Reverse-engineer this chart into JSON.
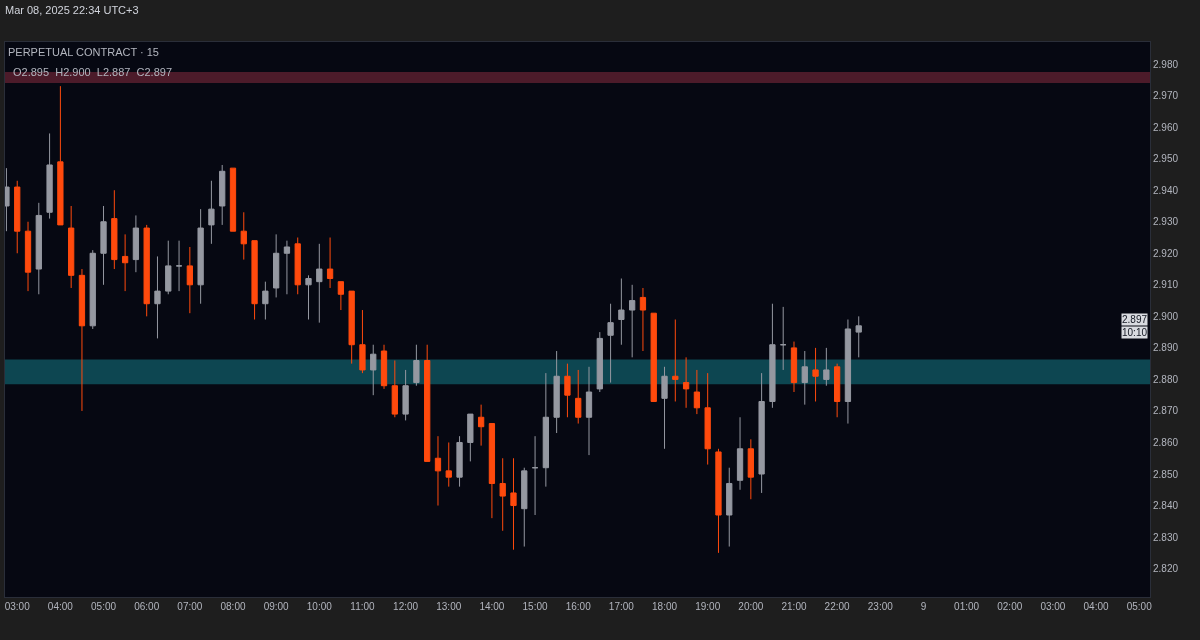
{
  "chart_data": {
    "type": "candlestick",
    "title": "PERPETUAL CONTRACT · 15",
    "subtitle": "O2.895  H2.900  L2.887  C2.897",
    "annotations": [
      "Mar 08, 2025 22:34 UTC+3",
      "2.897",
      "10:10"
    ],
    "x": [
      "2025-03-08T02:45",
      "2025-03-08T03:00",
      "2025-03-08T03:15",
      "2025-03-08T03:30",
      "2025-03-08T03:45",
      "2025-03-08T04:00",
      "2025-03-08T04:15",
      "2025-03-08T04:30",
      "2025-03-08T04:45",
      "2025-03-08T05:00",
      "2025-03-08T05:15",
      "2025-03-08T05:30",
      "2025-03-08T05:45",
      "2025-03-08T06:00",
      "2025-03-08T06:15",
      "2025-03-08T06:30",
      "2025-03-08T06:45",
      "2025-03-08T07:00",
      "2025-03-08T07:15",
      "2025-03-08T07:30",
      "2025-03-08T07:45",
      "2025-03-08T08:00",
      "2025-03-08T08:15",
      "2025-03-08T08:30",
      "2025-03-08T08:45",
      "2025-03-08T09:00",
      "2025-03-08T09:15",
      "2025-03-08T09:30",
      "2025-03-08T09:45",
      "2025-03-08T10:00",
      "2025-03-08T10:15",
      "2025-03-08T10:30",
      "2025-03-08T10:45",
      "2025-03-08T11:00",
      "2025-03-08T11:15",
      "2025-03-08T11:30",
      "2025-03-08T11:45",
      "2025-03-08T12:00",
      "2025-03-08T12:15",
      "2025-03-08T12:30",
      "2025-03-08T12:45",
      "2025-03-08T13:00",
      "2025-03-08T13:15",
      "2025-03-08T13:30",
      "2025-03-08T13:45",
      "2025-03-08T14:00",
      "2025-03-08T14:15",
      "2025-03-08T14:30",
      "2025-03-08T14:45",
      "2025-03-08T15:00",
      "2025-03-08T15:15",
      "2025-03-08T15:30",
      "2025-03-08T15:45",
      "2025-03-08T16:00",
      "2025-03-08T16:15",
      "2025-03-08T16:30",
      "2025-03-08T16:45",
      "2025-03-08T17:00",
      "2025-03-08T17:15",
      "2025-03-08T17:30",
      "2025-03-08T17:45",
      "2025-03-08T18:00",
      "2025-03-08T18:15",
      "2025-03-08T18:30",
      "2025-03-08T18:45",
      "2025-03-08T19:00",
      "2025-03-08T19:15",
      "2025-03-08T19:30",
      "2025-03-08T19:45",
      "2025-03-08T20:00",
      "2025-03-08T20:15",
      "2025-03-08T20:30",
      "2025-03-08T20:45",
      "2025-03-08T21:00",
      "2025-03-08T21:15",
      "2025-03-08T21:30",
      "2025-03-08T21:45",
      "2025-03-08T22:00",
      "2025-03-08T22:15",
      "2025-03-08T22:30"
    ],
    "ohlc": [
      [
        2.935,
        2.947,
        2.927,
        2.941
      ],
      [
        2.941,
        2.943,
        2.92,
        2.927
      ],
      [
        2.927,
        2.93,
        2.908,
        2.914
      ],
      [
        2.915,
        2.936,
        2.907,
        2.932
      ],
      [
        2.933,
        2.958,
        2.931,
        2.948
      ],
      [
        2.949,
        2.973,
        2.929,
        2.929
      ],
      [
        2.928,
        2.935,
        2.909,
        2.913
      ],
      [
        2.913,
        2.915,
        2.87,
        2.897
      ],
      [
        2.897,
        2.921,
        2.896,
        2.92
      ],
      [
        2.92,
        2.935,
        2.91,
        2.93
      ],
      [
        2.931,
        2.94,
        2.915,
        2.918
      ],
      [
        2.919,
        2.926,
        2.908,
        2.917
      ],
      [
        2.918,
        2.932,
        2.914,
        2.928
      ],
      [
        2.928,
        2.929,
        2.9,
        2.904
      ],
      [
        2.904,
        2.919,
        2.893,
        2.908
      ],
      [
        2.908,
        2.924,
        2.907,
        2.916
      ],
      [
        2.916,
        2.924,
        2.908,
        2.916
      ],
      [
        2.916,
        2.922,
        2.901,
        2.91
      ],
      [
        2.91,
        2.934,
        2.904,
        2.928
      ],
      [
        2.929,
        2.943,
        2.923,
        2.934
      ],
      [
        2.935,
        2.948,
        2.929,
        2.946
      ],
      [
        2.947,
        2.947,
        2.927,
        2.927
      ],
      [
        2.927,
        2.933,
        2.918,
        2.923
      ],
      [
        2.924,
        2.924,
        2.899,
        2.904
      ],
      [
        2.904,
        2.911,
        2.899,
        2.908
      ],
      [
        2.909,
        2.926,
        2.906,
        2.92
      ],
      [
        2.92,
        2.924,
        2.907,
        2.922
      ],
      [
        2.923,
        2.925,
        2.907,
        2.91
      ],
      [
        2.91,
        2.913,
        2.899,
        2.912
      ],
      [
        2.911,
        2.923,
        2.898,
        2.915
      ],
      [
        2.915,
        2.925,
        2.909,
        2.912
      ],
      [
        2.911,
        2.911,
        2.902,
        2.907
      ],
      [
        2.908,
        2.908,
        2.885,
        2.891
      ],
      [
        2.891,
        2.902,
        2.882,
        2.883
      ],
      [
        2.883,
        2.891,
        2.875,
        2.888
      ],
      [
        2.889,
        2.891,
        2.877,
        2.878
      ],
      [
        2.878,
        2.886,
        2.868,
        2.869
      ],
      [
        2.869,
        2.883,
        2.867,
        2.878
      ],
      [
        2.879,
        2.891,
        2.878,
        2.886
      ],
      [
        2.886,
        2.891,
        2.854,
        2.854
      ],
      [
        2.855,
        2.862,
        2.84,
        2.851
      ],
      [
        2.851,
        2.86,
        2.846,
        2.849
      ],
      [
        2.849,
        2.862,
        2.846,
        2.86
      ],
      [
        2.86,
        2.869,
        2.854,
        2.869
      ],
      [
        2.868,
        2.872,
        2.859,
        2.865
      ],
      [
        2.866,
        2.866,
        2.836,
        2.847
      ],
      [
        2.847,
        2.855,
        2.832,
        2.843
      ],
      [
        2.844,
        2.855,
        2.826,
        2.84
      ],
      [
        2.839,
        2.852,
        2.827,
        2.851
      ],
      [
        2.852,
        2.862,
        2.837,
        2.852
      ],
      [
        2.852,
        2.882,
        2.846,
        2.868
      ],
      [
        2.868,
        2.889,
        2.863,
        2.881
      ],
      [
        2.881,
        2.885,
        2.868,
        2.875
      ],
      [
        2.874,
        2.883,
        2.866,
        2.868
      ],
      [
        2.868,
        2.884,
        2.856,
        2.876
      ],
      [
        2.877,
        2.895,
        2.876,
        2.893
      ],
      [
        2.894,
        2.904,
        2.879,
        2.898
      ],
      [
        2.899,
        2.912,
        2.891,
        2.902
      ],
      [
        2.902,
        2.91,
        2.887,
        2.905
      ],
      [
        2.906,
        2.909,
        2.889,
        2.902
      ],
      [
        2.901,
        2.901,
        2.873,
        2.873
      ],
      [
        2.874,
        2.884,
        2.858,
        2.881
      ],
      [
        2.881,
        2.899,
        2.873,
        2.88
      ],
      [
        2.879,
        2.887,
        2.871,
        2.877
      ],
      [
        2.876,
        2.883,
        2.869,
        2.871
      ],
      [
        2.871,
        2.882,
        2.853,
        2.858
      ],
      [
        2.857,
        2.858,
        2.825,
        2.837
      ],
      [
        2.837,
        2.852,
        2.827,
        2.847
      ],
      [
        2.848,
        2.868,
        2.845,
        2.858
      ],
      [
        2.858,
        2.861,
        2.842,
        2.849
      ],
      [
        2.85,
        2.882,
        2.844,
        2.873
      ],
      [
        2.873,
        2.904,
        2.871,
        2.891
      ],
      [
        2.891,
        2.903,
        2.883,
        2.891
      ],
      [
        2.89,
        2.892,
        2.876,
        2.879
      ],
      [
        2.879,
        2.889,
        2.872,
        2.884
      ],
      [
        2.883,
        2.89,
        2.873,
        2.881
      ],
      [
        2.88,
        2.89,
        2.878,
        2.883
      ],
      [
        2.884,
        2.885,
        2.868,
        2.873
      ],
      [
        2.873,
        2.899,
        2.866,
        2.896
      ],
      [
        2.895,
        2.9,
        2.887,
        2.897
      ]
    ],
    "colors": [
      "#9598a1",
      "#ff4a0d",
      "#ff4a0d",
      "#9598a1",
      "#9598a1",
      "#ff4a0d",
      "#ff4a0d",
      "#ff4a0d",
      "#9598a1",
      "#9598a1",
      "#ff4a0d",
      "#ff4a0d",
      "#9598a1",
      "#ff4a0d",
      "#9598a1",
      "#9598a1",
      "#9598a1",
      "#ff4a0d",
      "#9598a1",
      "#9598a1",
      "#9598a1",
      "#ff4a0d",
      "#ff4a0d",
      "#ff4a0d",
      "#9598a1",
      "#9598a1",
      "#9598a1",
      "#ff4a0d",
      "#9598a1",
      "#9598a1",
      "#ff4a0d",
      "#ff4a0d",
      "#ff4a0d",
      "#ff4a0d",
      "#9598a1",
      "#ff4a0d",
      "#ff4a0d",
      "#9598a1",
      "#9598a1",
      "#ff4a0d",
      "#ff4a0d",
      "#ff4a0d",
      "#9598a1",
      "#9598a1",
      "#ff4a0d",
      "#ff4a0d",
      "#ff4a0d",
      "#ff4a0d",
      "#9598a1",
      "#9598a1",
      "#9598a1",
      "#9598a1",
      "#ff4a0d",
      "#ff4a0d",
      "#9598a1",
      "#9598a1",
      "#9598a1",
      "#9598a1",
      "#9598a1",
      "#ff4a0d",
      "#ff4a0d",
      "#9598a1",
      "#ff4a0d",
      "#ff4a0d",
      "#ff4a0d",
      "#ff4a0d",
      "#ff4a0d",
      "#9598a1",
      "#9598a1",
      "#ff4a0d",
      "#9598a1",
      "#9598a1",
      "#9598a1",
      "#ff4a0d",
      "#9598a1",
      "#ff4a0d",
      "#9598a1",
      "#ff4a0d",
      "#9598a1",
      "#9598a1"
    ],
    "bands": [
      {
        "axis": "y",
        "from": 2.974,
        "to": 2.9775,
        "color": "#4c1b2a"
      },
      {
        "axis": "y",
        "from": 2.8785,
        "to": 2.8863,
        "color": "#0d4651"
      }
    ],
    "xlim": [
      "2025-03-08T02:43",
      "2025-03-09T05:15"
    ],
    "xticks": [
      {
        "value": "2025-03-08T03:00",
        "label": "03:00"
      },
      {
        "value": "2025-03-08T04:00",
        "label": "04:00"
      },
      {
        "value": "2025-03-08T05:00",
        "label": "05:00"
      },
      {
        "value": "2025-03-08T06:00",
        "label": "06:00"
      },
      {
        "value": "2025-03-08T07:00",
        "label": "07:00"
      },
      {
        "value": "2025-03-08T08:00",
        "label": "08:00"
      },
      {
        "value": "2025-03-08T09:00",
        "label": "09:00"
      },
      {
        "value": "2025-03-08T10:00",
        "label": "10:00"
      },
      {
        "value": "2025-03-08T11:00",
        "label": "11:00"
      },
      {
        "value": "2025-03-08T12:00",
        "label": "12:00"
      },
      {
        "value": "2025-03-08T13:00",
        "label": "13:00"
      },
      {
        "value": "2025-03-08T14:00",
        "label": "14:00"
      },
      {
        "value": "2025-03-08T15:00",
        "label": "15:00"
      },
      {
        "value": "2025-03-08T16:00",
        "label": "16:00"
      },
      {
        "value": "2025-03-08T17:00",
        "label": "17:00"
      },
      {
        "value": "2025-03-08T18:00",
        "label": "18:00"
      },
      {
        "value": "2025-03-08T19:00",
        "label": "19:00"
      },
      {
        "value": "2025-03-08T20:00",
        "label": "20:00"
      },
      {
        "value": "2025-03-08T21:00",
        "label": "21:00"
      },
      {
        "value": "2025-03-08T22:00",
        "label": "22:00"
      },
      {
        "value": "2025-03-08T23:00",
        "label": "23:00"
      },
      {
        "value": "2025-03-09T00:00",
        "label": "9"
      },
      {
        "value": "2025-03-09T01:00",
        "label": "01:00"
      },
      {
        "value": "2025-03-09T02:00",
        "label": "02:00"
      },
      {
        "value": "2025-03-09T03:00",
        "label": "03:00"
      },
      {
        "value": "2025-03-09T04:00",
        "label": "04:00"
      },
      {
        "value": "2025-03-09T05:00",
        "label": "05:00"
      }
    ],
    "ylim": [
      2.811,
      2.987
    ],
    "yticks": [
      {
        "value": 2.82,
        "label": "2.820"
      },
      {
        "value": 2.83,
        "label": "2.830"
      },
      {
        "value": 2.84,
        "label": "2.840"
      },
      {
        "value": 2.85,
        "label": "2.850"
      },
      {
        "value": 2.86,
        "label": "2.860"
      },
      {
        "value": 2.87,
        "label": "2.870"
      },
      {
        "value": 2.88,
        "label": "2.880"
      },
      {
        "value": 2.89,
        "label": "2.890"
      },
      {
        "value": 2.9,
        "label": "2.900"
      },
      {
        "value": 2.91,
        "label": "2.910"
      },
      {
        "value": 2.92,
        "label": "2.920"
      },
      {
        "value": 2.93,
        "label": "2.930"
      },
      {
        "value": 2.94,
        "label": "2.940"
      },
      {
        "value": 2.95,
        "label": "2.950"
      },
      {
        "value": 2.96,
        "label": "2.960"
      },
      {
        "value": 2.97,
        "label": "2.970"
      },
      {
        "value": 2.98,
        "label": "2.980"
      }
    ],
    "grid": false
  }
}
